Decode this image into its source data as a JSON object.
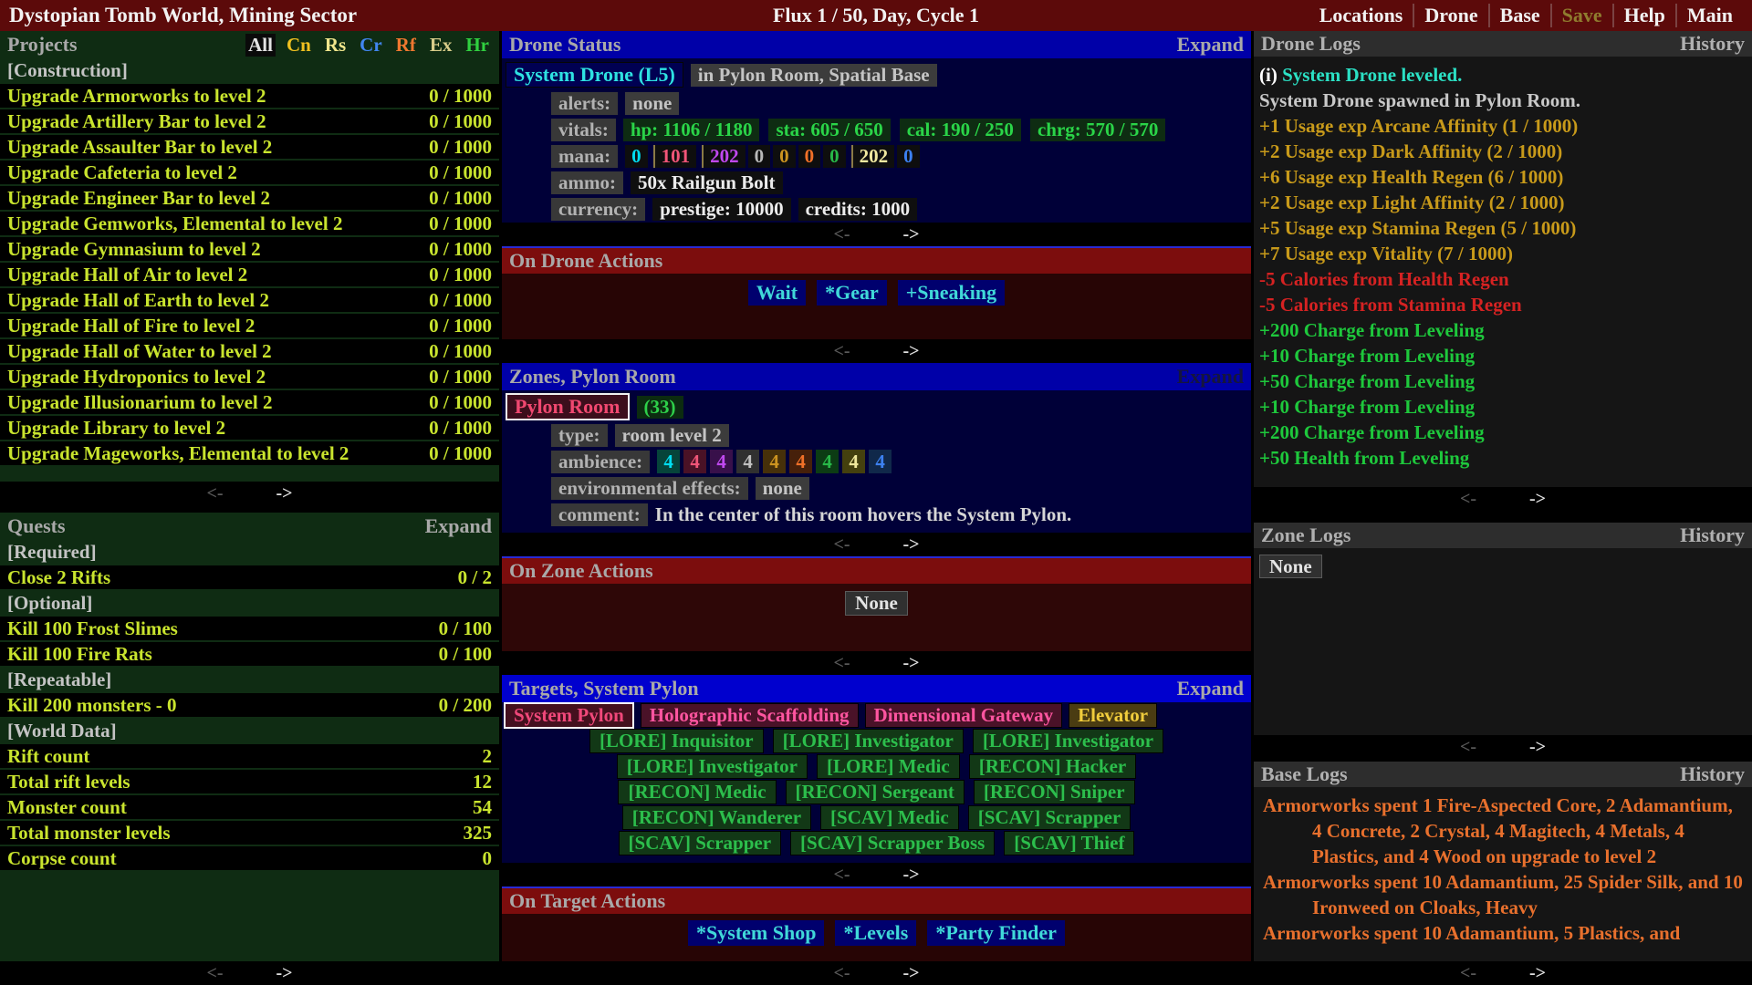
{
  "pager": {
    "prev": "<-",
    "next": "->"
  },
  "top_bar": {
    "title": "Dystopian Tomb World, Mining Sector",
    "center": "Flux 1 / 50, Day, Cycle 1",
    "menu": [
      {
        "label": "Locations",
        "color": "#f2f2f2"
      },
      {
        "label": "Drone",
        "color": "#f2f2f2"
      },
      {
        "label": "Base",
        "color": "#f2f2f2"
      },
      {
        "label": "Save",
        "color": "#8f7c2e"
      },
      {
        "label": "Help",
        "color": "#f2f2f2"
      },
      {
        "label": "Main",
        "color": "#f2f2f2"
      }
    ]
  },
  "projects": {
    "title": "Projects",
    "filters": [
      {
        "label": "All",
        "color": "#e2e2e2",
        "bg": "#0a0a0a"
      },
      {
        "label": "Cn",
        "color": "#f0c020"
      },
      {
        "label": "Rs",
        "color": "#f0e68c"
      },
      {
        "label": "Cr",
        "color": "#4186f0"
      },
      {
        "label": "Rf",
        "color": "#f07830"
      },
      {
        "label": "Ex",
        "color": "#d8cc8a"
      },
      {
        "label": "Hr",
        "color": "#30d040"
      }
    ],
    "rows": [
      {
        "header": true,
        "label": "[Construction]"
      },
      {
        "label": "Upgrade Armorworks to level 2",
        "value": "0 / 1000"
      },
      {
        "label": "Upgrade Artillery Bar to level 2",
        "value": "0 / 1000"
      },
      {
        "label": "Upgrade Assaulter Bar to level 2",
        "value": "0 / 1000"
      },
      {
        "label": "Upgrade Cafeteria to level 2",
        "value": "0 / 1000"
      },
      {
        "label": "Upgrade Engineer Bar to level 2",
        "value": "0 / 1000"
      },
      {
        "label": "Upgrade Gemworks, Elemental to level 2",
        "value": "0 / 1000"
      },
      {
        "label": "Upgrade Gymnasium to level 2",
        "value": "0 / 1000"
      },
      {
        "label": "Upgrade Hall of Air to level 2",
        "value": "0 / 1000"
      },
      {
        "label": "Upgrade Hall of Earth to level 2",
        "value": "0 / 1000"
      },
      {
        "label": "Upgrade Hall of Fire to level 2",
        "value": "0 / 1000"
      },
      {
        "label": "Upgrade Hall of Water to level 2",
        "value": "0 / 1000"
      },
      {
        "label": "Upgrade Hydroponics to level 2",
        "value": "0 / 1000"
      },
      {
        "label": "Upgrade Illusionarium to level 2",
        "value": "0 / 1000"
      },
      {
        "label": "Upgrade Library to level 2",
        "value": "0 / 1000"
      },
      {
        "label": "Upgrade Mageworks, Elemental to level 2",
        "value": "0 / 1000"
      }
    ]
  },
  "quests": {
    "title": "Quests",
    "expand": "Expand",
    "rows": [
      {
        "header": true,
        "label": "[Required]"
      },
      {
        "label": "Close 2 Rifts",
        "value": "0 / 2"
      },
      {
        "header": true,
        "label": "[Optional]"
      },
      {
        "label": "Kill 100 Frost Slimes",
        "value": "0 / 100"
      },
      {
        "label": "Kill 100 Fire Rats",
        "value": "0 / 100"
      },
      {
        "header": true,
        "label": "[Repeatable]"
      },
      {
        "label": "Kill 200 monsters - 0",
        "value": "0 / 200"
      },
      {
        "header": true,
        "label": "[World Data]"
      },
      {
        "label": "Rift count",
        "value": "2"
      },
      {
        "label": "Total rift levels",
        "value": "12"
      },
      {
        "label": "Monster count",
        "value": "54"
      },
      {
        "label": "Total monster levels",
        "value": "325"
      },
      {
        "label": "Corpse count",
        "value": "0"
      }
    ]
  },
  "drone_status": {
    "title": "Drone Status",
    "expand": "Expand",
    "name": "System Drone (L5)",
    "location": "in Pylon Room, Spatial Base",
    "alerts_label": "alerts:",
    "alerts_value": "none",
    "vitals_label": "vitals:",
    "vitals": [
      "hp: 1106 / 1180",
      "sta: 605 / 650",
      "cal: 190 / 250",
      "chrg: 570 / 570"
    ],
    "mana_label": "mana:",
    "mana": [
      {
        "value": "0",
        "color": "#00dcf0"
      },
      {
        "value": "101",
        "color": "#f05578",
        "sep": true
      },
      {
        "value": "202",
        "color": "#c048f0",
        "sep": true
      },
      {
        "value": "0",
        "color": "#b8b8b8"
      },
      {
        "value": "0",
        "color": "#cc9420"
      },
      {
        "value": "0",
        "color": "#f07028"
      },
      {
        "value": "0",
        "color": "#28b848"
      },
      {
        "value": "202",
        "color": "#f0e8a0",
        "sep": true
      },
      {
        "value": "0",
        "color": "#3c80f0"
      }
    ],
    "ammo_label": "ammo:",
    "ammo_value": "50x Railgun Bolt",
    "currency_label": "currency:",
    "currency": [
      "prestige: 10000",
      "credits: 1000"
    ]
  },
  "drone_actions": {
    "title": "On Drone Actions",
    "buttons": [
      "Wait",
      "*Gear",
      "+Sneaking"
    ]
  },
  "zones": {
    "title": "Zones, Pylon Room",
    "expand": "Expand",
    "expand_color": "#15153e",
    "room_name": "Pylon Room",
    "room_count": "(33)",
    "type_label": "type:",
    "type_value": "room level 2",
    "ambience_label": "ambience:",
    "ambience": [
      {
        "value": "4",
        "color": "#00dcf0",
        "bg": "#06443a"
      },
      {
        "value": "4",
        "color": "#f05578",
        "bg": "#4a1226"
      },
      {
        "value": "4",
        "color": "#c048f0",
        "bg": "#38104a"
      },
      {
        "value": "4",
        "color": "#c0c0c0",
        "bg": "#303030"
      },
      {
        "value": "4",
        "color": "#cc9420",
        "bg": "#46300a"
      },
      {
        "value": "4",
        "color": "#f07028",
        "bg": "#46200a"
      },
      {
        "value": "4",
        "color": "#28b848",
        "bg": "#0c3c14"
      },
      {
        "value": "4",
        "color": "#f0e89c",
        "bg": "#44400e"
      },
      {
        "value": "4",
        "color": "#3c80f0",
        "bg": "#10284a"
      }
    ],
    "env_label": "environmental effects:",
    "env_value": "none",
    "comment_label": "comment:",
    "comment": "In the center of this room hovers the System Pylon."
  },
  "zone_actions": {
    "title": "On Zone Actions",
    "none": "None"
  },
  "targets": {
    "title": "Targets, System Pylon",
    "expand": "Expand",
    "primary": [
      {
        "label": "System Pylon",
        "color": "#f0487a",
        "bg": "#44101e",
        "selected": true
      },
      {
        "label": "Holographic Scaffolding",
        "color": "#ff55a0",
        "bg": "#4a1228"
      },
      {
        "label": "Dimensional Gateway",
        "color": "#ff55a0",
        "bg": "#4a1228"
      },
      {
        "label": "Elevator",
        "color": "#f0cc3c",
        "bg": "#4a3c12"
      }
    ],
    "crew_rows": {
      "r1": [
        "[LORE]  Inquisitor",
        "[LORE]  Investigator",
        "[LORE]  Investigator"
      ],
      "r2": [
        "[LORE]  Investigator",
        "[LORE]  Medic",
        "[RECON]  Hacker"
      ],
      "r3": [
        "[RECON]  Medic",
        "[RECON]  Sergeant",
        "[RECON]  Sniper"
      ],
      "r4": [
        "[RECON]  Wanderer",
        "[SCAV]  Medic",
        "[SCAV]  Scrapper"
      ],
      "r5": [
        "[SCAV]  Scrapper",
        "[SCAV]  Scrapper Boss",
        "[SCAV]  Thief"
      ]
    }
  },
  "target_actions": {
    "title": "On Target Actions",
    "buttons": [
      "*System Shop",
      "*Levels",
      "*Party Finder"
    ]
  },
  "drone_logs": {
    "title": "Drone Logs",
    "history": "History",
    "entries": [
      {
        "prefix": "(i) ",
        "text": "System Drone leveled.",
        "color": "#2be0c4"
      },
      {
        "text": "System Drone spawned in Pylon Room.",
        "color": "#c9c9c9"
      },
      {
        "text": "+1 Usage exp Arcane Affinity (1 / 1000)",
        "color": "#c89a1a"
      },
      {
        "text": "+2 Usage exp Dark Affinity (2 / 1000)",
        "color": "#c89a1a"
      },
      {
        "text": "+6 Usage exp Health Regen (6 / 1000)",
        "color": "#c89a1a"
      },
      {
        "text": "+2 Usage exp Light Affinity (2 / 1000)",
        "color": "#c89a1a"
      },
      {
        "text": "+5 Usage exp Stamina Regen (5 / 1000)",
        "color": "#c89a1a"
      },
      {
        "text": "+7 Usage exp Vitality (7 / 1000)",
        "color": "#c89a1a"
      },
      {
        "text": "-5 Calories from Health Regen",
        "color": "#d62222"
      },
      {
        "text": "-5 Calories from Stamina Regen",
        "color": "#d62222"
      },
      {
        "text": "+200 Charge from Leveling",
        "color": "#1ec83c"
      },
      {
        "text": "+10 Charge from Leveling",
        "color": "#1ec83c"
      },
      {
        "text": "+50 Charge from Leveling",
        "color": "#1ec83c"
      },
      {
        "text": "+10 Charge from Leveling",
        "color": "#1ec83c"
      },
      {
        "text": "+200 Charge from Leveling",
        "color": "#1ec83c"
      },
      {
        "text": "+50 Health from Leveling",
        "color": "#1ec83c"
      }
    ]
  },
  "zone_logs": {
    "title": "Zone Logs",
    "history": "History",
    "none": "None"
  },
  "base_logs": {
    "title": "Base Logs",
    "history": "History",
    "entries": [
      "Armorworks spent 1 Fire-Aspected Core, 2 Adamantium, 4 Concrete, 2 Crystal, 4 Magitech, 4 Metals, 4 Plastics, and 4 Wood on upgrade to level 2",
      "Armorworks spent 10 Adamantium, 25 Spider Silk, and 10 Ironweed on Cloaks, Heavy",
      "Armorworks spent 10 Adamantium, 5 Plastics, and"
    ]
  }
}
